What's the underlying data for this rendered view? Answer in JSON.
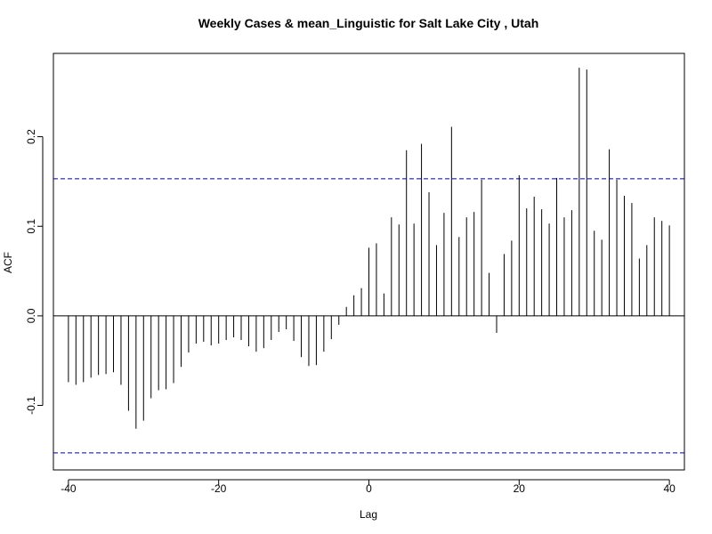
{
  "chart_data": {
    "type": "bar",
    "title": "Weekly Cases & mean_Linguistic for Salt Lake City , Utah",
    "xlabel": "Lag",
    "ylabel": "ACF",
    "xlim": [
      -42,
      42
    ],
    "ylim": [
      -0.172,
      0.293
    ],
    "x_ticks": [
      -40,
      -20,
      0,
      20,
      40
    ],
    "y_ticks": [
      -0.1,
      0.0,
      0.1,
      0.2
    ],
    "y_tick_labels": [
      "-0.1",
      "0.0",
      "0.1",
      "0.2"
    ],
    "confidence_band": [
      -0.153,
      0.153
    ],
    "lags": [
      -40,
      -39,
      -38,
      -37,
      -36,
      -35,
      -34,
      -33,
      -32,
      -31,
      -30,
      -29,
      -28,
      -27,
      -26,
      -25,
      -24,
      -23,
      -22,
      -21,
      -20,
      -19,
      -18,
      -17,
      -16,
      -15,
      -14,
      -13,
      -12,
      -11,
      -10,
      -9,
      -8,
      -7,
      -6,
      -5,
      -4,
      -3,
      -2,
      -1,
      0,
      1,
      2,
      3,
      4,
      5,
      6,
      7,
      8,
      9,
      10,
      11,
      12,
      13,
      14,
      15,
      16,
      17,
      18,
      19,
      20,
      21,
      22,
      23,
      24,
      25,
      26,
      27,
      28,
      29,
      30,
      31,
      32,
      33,
      34,
      35,
      36,
      37,
      38,
      39,
      40
    ],
    "acf": [
      -0.074,
      -0.077,
      -0.074,
      -0.069,
      -0.066,
      -0.065,
      -0.063,
      -0.077,
      -0.106,
      -0.126,
      -0.117,
      -0.092,
      -0.083,
      -0.082,
      -0.075,
      -0.057,
      -0.041,
      -0.031,
      -0.029,
      -0.033,
      -0.031,
      -0.027,
      -0.024,
      -0.027,
      -0.034,
      -0.04,
      -0.036,
      -0.027,
      -0.018,
      -0.015,
      -0.028,
      -0.046,
      -0.056,
      -0.055,
      -0.04,
      -0.026,
      -0.01,
      0.01,
      0.023,
      0.031,
      0.076,
      0.081,
      0.025,
      0.11,
      0.102,
      0.185,
      0.103,
      0.192,
      0.138,
      0.079,
      0.115,
      0.211,
      0.088,
      0.11,
      0.116,
      0.152,
      0.048,
      -0.019,
      0.069,
      0.084,
      0.157,
      0.12,
      0.133,
      0.119,
      0.103,
      0.154,
      0.11,
      0.118,
      0.277,
      0.275,
      0.095,
      0.085,
      0.186,
      0.152,
      0.134,
      0.126,
      0.064,
      0.079,
      0.11,
      0.106,
      0.101
    ],
    "line_color": "#000000",
    "band_color": "#00008b",
    "grid": false,
    "legend": "none"
  }
}
